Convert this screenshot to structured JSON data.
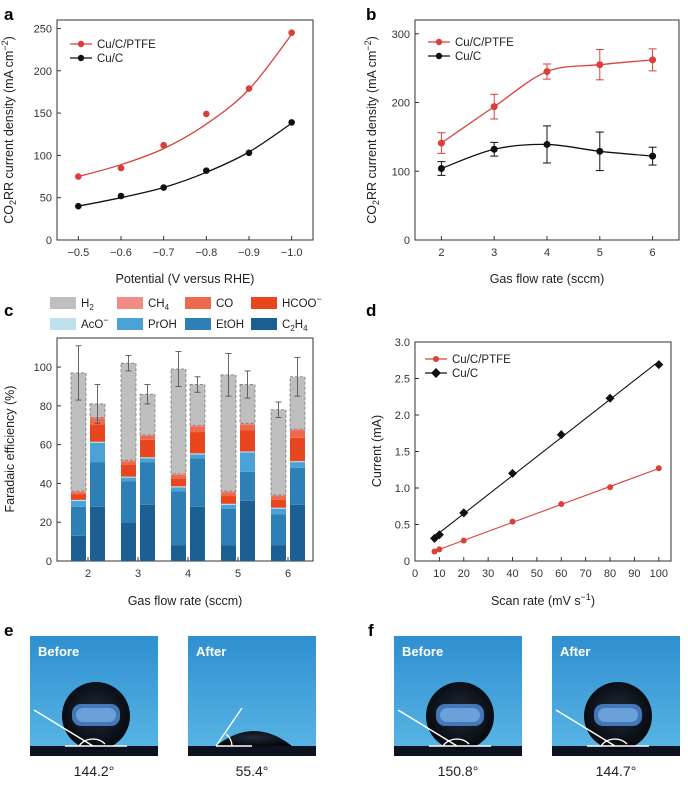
{
  "colors": {
    "red": "#d9403a",
    "black": "#111111",
    "h2": "#bfbfbf",
    "ch4": "#f08c86",
    "co": "#ec6b4f",
    "hcoo": "#e8461e",
    "aco": "#bfe0ef",
    "proh": "#4aa2d6",
    "etoh": "#2f7fb7",
    "c2h4": "#1b5f93",
    "photo_blue": "#3e9fd8"
  },
  "panels": {
    "a": {
      "letter": "a",
      "ytick_labels": [
        "0",
        "50",
        "100",
        "150",
        "200",
        "250"
      ],
      "xtick_labels": [
        "−0.5",
        "−0.6",
        "−0.7",
        "−0.8",
        "−0.9",
        "−1.0"
      ]
    },
    "b": {
      "letter": "b",
      "ytick_labels": [
        "0",
        "100",
        "200",
        "300"
      ],
      "xtick_labels": [
        "2",
        "3",
        "4",
        "5",
        "6"
      ]
    },
    "c": {
      "letter": "c",
      "ytick_labels": [
        "0",
        "20",
        "40",
        "60",
        "80",
        "100"
      ],
      "xtick_labels": [
        "2",
        "3",
        "4",
        "5",
        "6"
      ]
    },
    "d": {
      "letter": "d",
      "ytick_labels": [
        "0",
        "0.5",
        "1.0",
        "1.5",
        "2.0",
        "2.5",
        "3.0"
      ],
      "xtick_labels": [
        "0",
        "10",
        "20",
        "30",
        "40",
        "50",
        "60",
        "70",
        "80",
        "90",
        "100"
      ]
    },
    "e": {
      "letter": "e",
      "before_label": "Before",
      "after_label": "After",
      "angle_before": "144.2°",
      "angle_after": "55.4°",
      "angle_before_value": 144.2,
      "angle_after_value": 55.4
    },
    "f": {
      "letter": "f",
      "before_label": "Before",
      "after_label": "After",
      "angle_before": "150.8°",
      "angle_after": "144.7°",
      "angle_before_value": 150.8,
      "angle_after_value": 144.7
    }
  },
  "chart_data": [
    {
      "id": "a",
      "type": "line",
      "xlabel": "Potential (V versus RHE)",
      "ylabel": "CO2RR current density (mA cm−2)",
      "x": [
        -0.5,
        -0.6,
        -0.7,
        -0.8,
        -0.9,
        -1.0
      ],
      "xlim": [
        -0.45,
        -1.05
      ],
      "ylim": [
        0,
        260
      ],
      "series": [
        {
          "name": "Cu/C/PTFE",
          "color": "red",
          "values": [
            75,
            85,
            112,
            149,
            179,
            245
          ],
          "fit": [
            75,
            89,
            108,
            137,
            178,
            243
          ]
        },
        {
          "name": "Cu/C",
          "color": "black",
          "values": [
            40,
            52,
            62,
            82,
            103,
            139
          ],
          "fit": [
            40,
            50,
            62,
            80,
            104,
            138
          ]
        }
      ]
    },
    {
      "id": "b",
      "type": "line",
      "xlabel": "Gas flow rate (sccm)",
      "ylabel": "CO2RR current density (mA cm−2)",
      "x": [
        2,
        3,
        4,
        5,
        6
      ],
      "xlim": [
        1.5,
        6.5
      ],
      "ylim": [
        0,
        320
      ],
      "series": [
        {
          "name": "Cu/C/PTFE",
          "color": "red",
          "values": [
            141,
            194,
            245,
            255,
            262
          ],
          "errors": [
            15,
            18,
            11,
            22,
            16
          ]
        },
        {
          "name": "Cu/C",
          "color": "black",
          "values": [
            104,
            132,
            139,
            129,
            122
          ],
          "errors": [
            10,
            10,
            27,
            28,
            13
          ]
        }
      ]
    },
    {
      "id": "c",
      "type": "bar",
      "stacked": true,
      "xlabel": "Gas flow rate (sccm)",
      "ylabel": "Faradaic efficiency (%)",
      "categories": [
        "2",
        "3",
        "4",
        "5",
        "6"
      ],
      "ylim": [
        0,
        115
      ],
      "legend": [
        {
          "key": "h2",
          "label": "H",
          "sub": "2",
          "sup": ""
        },
        {
          "key": "ch4",
          "label": "CH",
          "sub": "4",
          "sup": ""
        },
        {
          "key": "co",
          "label": "CO",
          "sub": "",
          "sup": ""
        },
        {
          "key": "hcoo",
          "label": "HCOO",
          "sub": "",
          "sup": "−"
        },
        {
          "key": "aco",
          "label": "AcO",
          "sub": "",
          "sup": "−"
        },
        {
          "key": "proh",
          "label": "PrOH",
          "sub": "",
          "sup": ""
        },
        {
          "key": "etoh",
          "label": "EtOH",
          "sub": "",
          "sup": ""
        },
        {
          "key": "c2h4",
          "label": "C",
          "sub": "2",
          "sup": "",
          "label2": "H",
          "sub2": "4"
        }
      ],
      "stack_order": [
        "c2h4",
        "etoh",
        "proh",
        "aco",
        "hcoo",
        "co",
        "ch4",
        "h2"
      ],
      "bars": [
        {
          "cat": "2",
          "sample": "Cu/C",
          "c2h4": 13,
          "etoh": 15,
          "proh": 3,
          "aco": 0.5,
          "hcoo": 3,
          "co": 1,
          "ch4": 0.5,
          "h2": 61,
          "err": 14
        },
        {
          "cat": "2",
          "sample": "Cu/C/PTFE",
          "c2h4": 28,
          "etoh": 23,
          "proh": 10,
          "aco": 0.5,
          "hcoo": 9,
          "co": 3,
          "ch4": 0.5,
          "h2": 7,
          "err": 10
        },
        {
          "cat": "3",
          "sample": "Cu/C",
          "c2h4": 20,
          "etoh": 21,
          "proh": 2,
          "aco": 0.5,
          "hcoo": 6,
          "co": 2,
          "ch4": 0.5,
          "h2": 50,
          "err": 4
        },
        {
          "cat": "3",
          "sample": "Cu/C/PTFE",
          "c2h4": 29,
          "etoh": 22,
          "proh": 2,
          "aco": 0.5,
          "hcoo": 9,
          "co": 2,
          "ch4": 0.5,
          "h2": 21,
          "err": 5
        },
        {
          "cat": "4",
          "sample": "Cu/C",
          "c2h4": 8,
          "etoh": 28,
          "proh": 2,
          "aco": 0.5,
          "hcoo": 4,
          "co": 2,
          "ch4": 0.5,
          "h2": 54,
          "err": 9
        },
        {
          "cat": "4",
          "sample": "Cu/C/PTFE",
          "c2h4": 28,
          "etoh": 25,
          "proh": 2,
          "aco": 0.5,
          "hcoo": 11,
          "co": 3,
          "ch4": 0.5,
          "h2": 21,
          "err": 4
        },
        {
          "cat": "5",
          "sample": "Cu/C",
          "c2h4": 8,
          "etoh": 19,
          "proh": 2,
          "aco": 0.5,
          "hcoo": 4,
          "co": 2,
          "ch4": 0.5,
          "h2": 60,
          "err": 11
        },
        {
          "cat": "5",
          "sample": "Cu/C/PTFE",
          "c2h4": 31,
          "etoh": 15,
          "proh": 10,
          "aco": 0.5,
          "hcoo": 11,
          "co": 3,
          "ch4": 0.5,
          "h2": 20,
          "err": 7
        },
        {
          "cat": "6",
          "sample": "Cu/C",
          "c2h4": 8,
          "etoh": 16,
          "proh": 3,
          "aco": 0.5,
          "hcoo": 4,
          "co": 2,
          "ch4": 0.5,
          "h2": 44,
          "err": 4
        },
        {
          "cat": "6",
          "sample": "Cu/C/PTFE",
          "c2h4": 29,
          "etoh": 19,
          "proh": 3,
          "aco": 0.5,
          "hcoo": 12,
          "co": 4,
          "ch4": 0.5,
          "h2": 27,
          "err": 10
        }
      ]
    },
    {
      "id": "d",
      "type": "scatter",
      "xlabel": "Scan rate (mV s−1)",
      "ylabel": "Current (mA)",
      "x": [
        8,
        10,
        20,
        40,
        60,
        80,
        100
      ],
      "xlim": [
        0,
        105
      ],
      "ylim": [
        0,
        3.0
      ],
      "series": [
        {
          "name": "Cu/C/PTFE",
          "color": "red",
          "values": [
            0.13,
            0.16,
            0.28,
            0.54,
            0.78,
            1.01,
            1.27
          ]
        },
        {
          "name": "Cu/C",
          "color": "black",
          "values": [
            0.31,
            0.36,
            0.66,
            1.2,
            1.73,
            2.23,
            2.69
          ]
        }
      ]
    }
  ]
}
